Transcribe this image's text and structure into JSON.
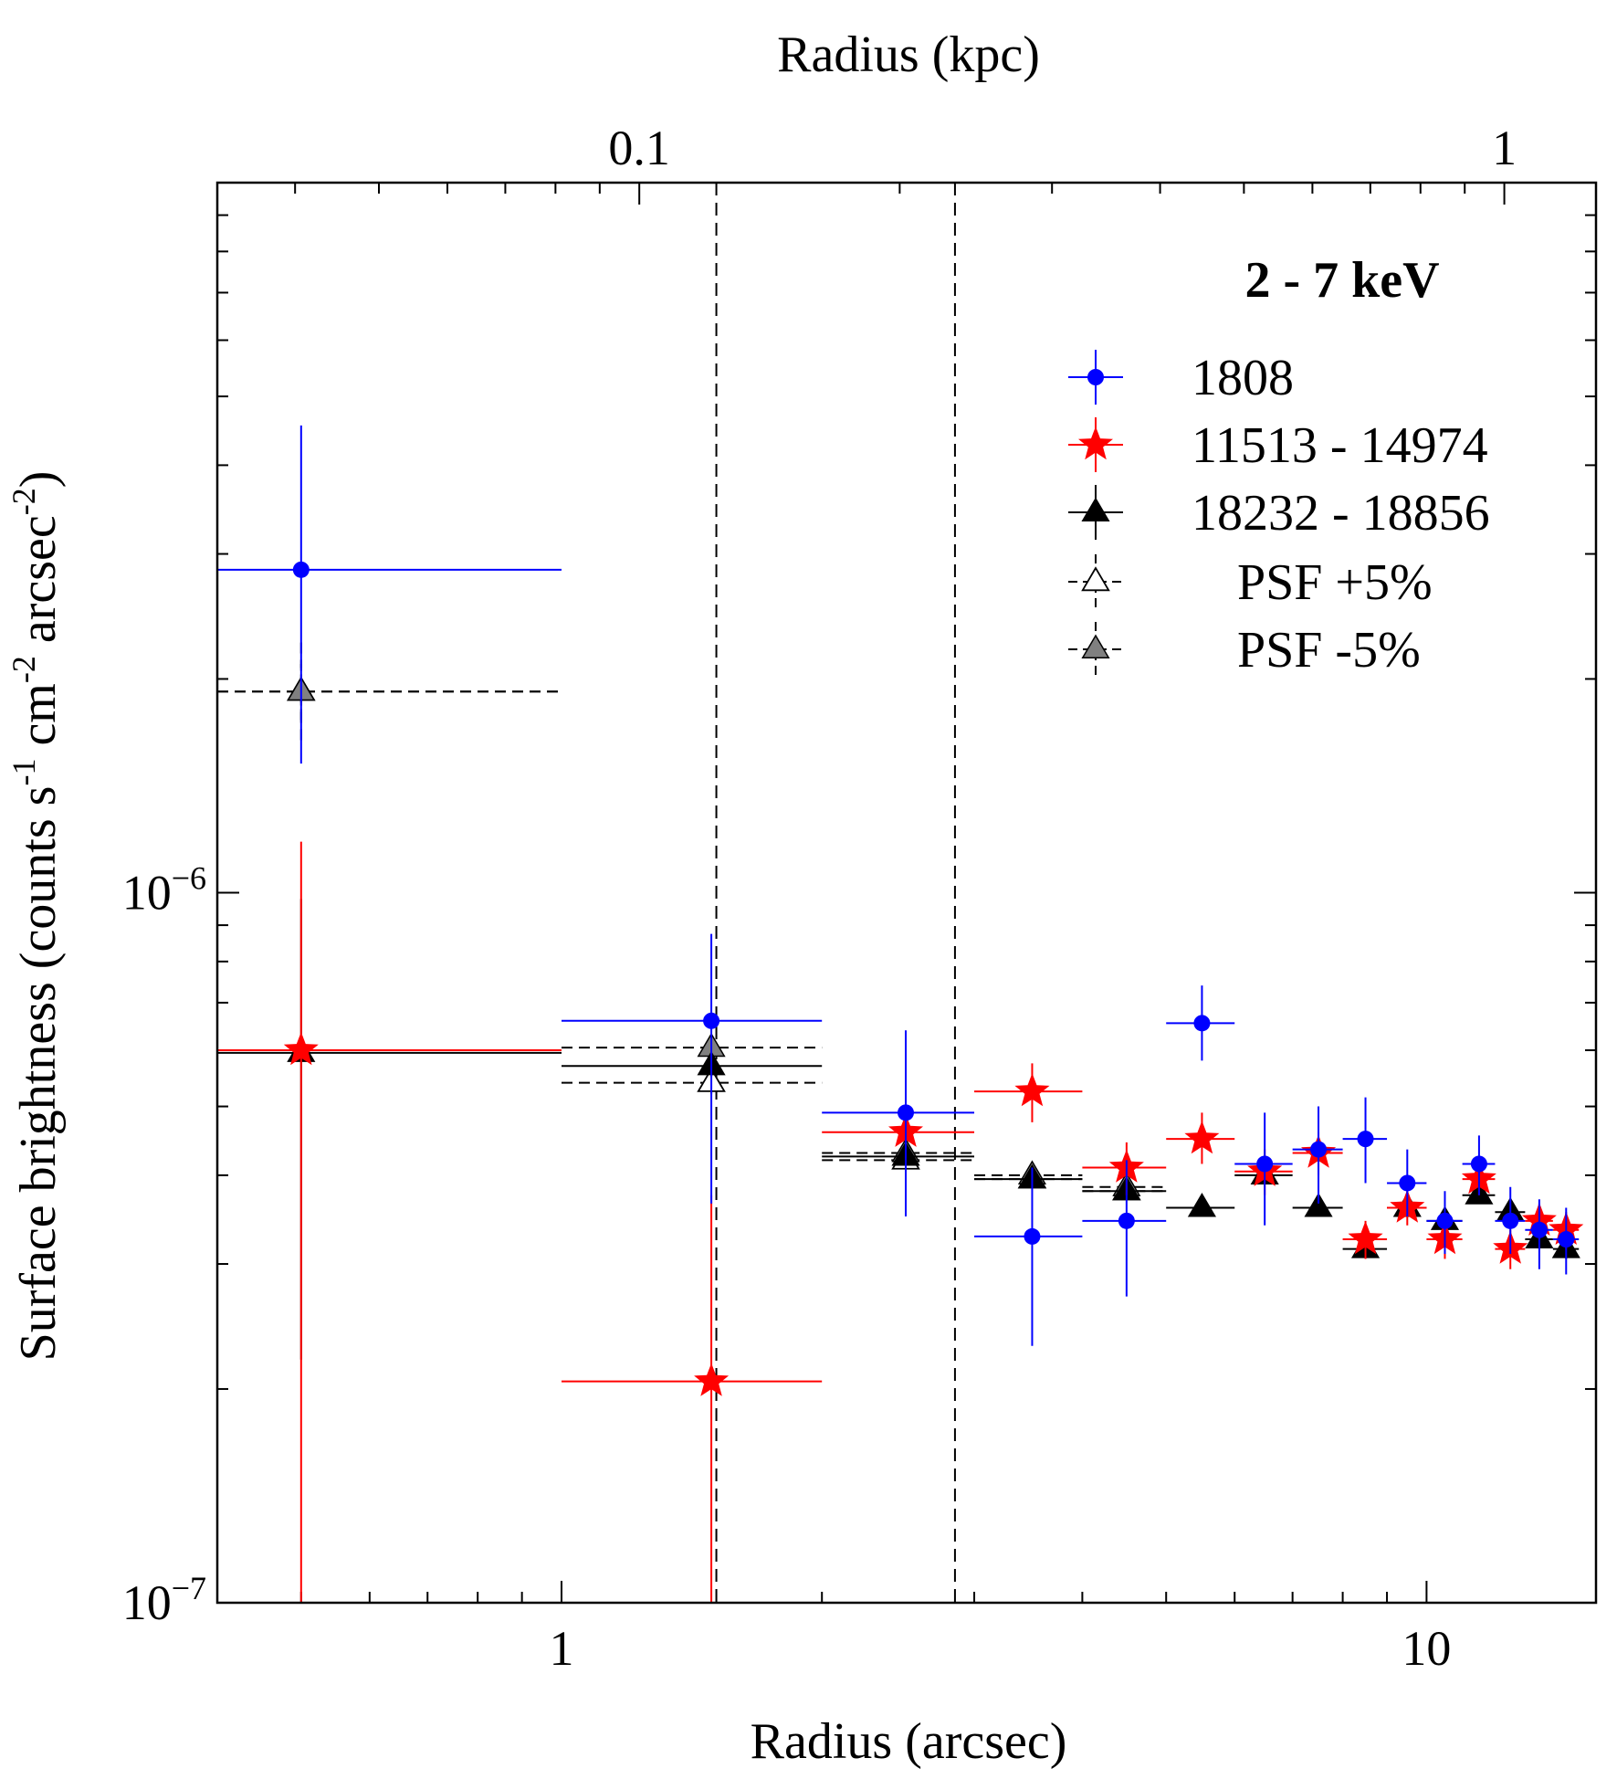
{
  "chart_data": {
    "type": "scatter",
    "xscale": "log",
    "yscale": "log",
    "xlim": [
      0.4,
      15.7
    ],
    "ylim": [
      1e-07,
      1e-05
    ],
    "xlabel": "Radius (arcsec)",
    "ylabel_main": "Surface brightness (counts s",
    "ylabel_parts": [
      "-1",
      " cm",
      "-2",
      " arcsec",
      "-2",
      ")"
    ],
    "x2label": "Radius (kpc)",
    "x_tick_labels": [
      {
        "value": 1,
        "label": "1"
      },
      {
        "value": 10,
        "label": "10"
      }
    ],
    "x2_tick_labels": [
      {
        "value": 0.1,
        "label": "0.1"
      },
      {
        "value": 1,
        "label": "1"
      }
    ],
    "x2_arcsec_per_kpc": 12.3,
    "y_tick_labels": [
      {
        "value": 1e-06,
        "base": "10",
        "exp": "−6"
      },
      {
        "value": 1e-07,
        "base": "10",
        "exp": "−7"
      }
    ],
    "vlines": [
      1.51,
      2.85
    ],
    "legend_title": "2 - 7 keV",
    "colors": {
      "s1808": "#0000ff",
      "s11513": "#ff0000",
      "s18232": "#000000",
      "psf_minus_fill": "#808080"
    },
    "series": [
      {
        "name": "1808",
        "marker": "circle",
        "color": "#0000ff",
        "points": [
          {
            "x": 0.5,
            "xlo": 0.4,
            "xhi": 1.0,
            "y": 2.85e-06,
            "ylo": 1.52e-06,
            "yhi": 4.55e-06
          },
          {
            "x": 1.49,
            "xlo": 1.0,
            "xhi": 2.0,
            "y": 6.6e-07,
            "ylo": 3.65e-07,
            "yhi": 8.75e-07
          },
          {
            "x": 2.5,
            "xlo": 2.0,
            "xhi": 3.0,
            "y": 4.9e-07,
            "ylo": 3.5e-07,
            "yhi": 6.4e-07
          },
          {
            "x": 3.5,
            "xlo": 3.0,
            "xhi": 4.0,
            "y": 3.28e-07,
            "ylo": 2.3e-07,
            "yhi": 4.1e-07
          },
          {
            "x": 4.5,
            "xlo": 4.0,
            "xhi": 5.0,
            "y": 3.45e-07,
            "ylo": 2.7e-07,
            "yhi": 4.2e-07
          },
          {
            "x": 5.5,
            "xlo": 5.0,
            "xhi": 6.0,
            "y": 6.55e-07,
            "ylo": 5.8e-07,
            "yhi": 7.4e-07
          },
          {
            "x": 6.5,
            "xlo": 6.0,
            "xhi": 7.0,
            "y": 4.15e-07,
            "ylo": 3.4e-07,
            "yhi": 4.9e-07
          },
          {
            "x": 7.5,
            "xlo": 7.0,
            "xhi": 8.0,
            "y": 4.35e-07,
            "ylo": 3.65e-07,
            "yhi": 5e-07
          },
          {
            "x": 8.5,
            "xlo": 8.0,
            "xhi": 9.0,
            "y": 4.5e-07,
            "ylo": 3.9e-07,
            "yhi": 5.15e-07
          },
          {
            "x": 9.5,
            "xlo": 9.0,
            "xhi": 10.0,
            "y": 3.9e-07,
            "ylo": 3.5e-07,
            "yhi": 4.35e-07
          },
          {
            "x": 10.5,
            "xlo": 10.0,
            "xhi": 11.0,
            "y": 3.45e-07,
            "ylo": 3.1e-07,
            "yhi": 3.8e-07
          },
          {
            "x": 11.5,
            "xlo": 11.0,
            "xhi": 12.0,
            "y": 4.15e-07,
            "ylo": 3.75e-07,
            "yhi": 4.55e-07
          },
          {
            "x": 12.5,
            "xlo": 12.0,
            "xhi": 13.0,
            "y": 3.45e-07,
            "ylo": 3.1e-07,
            "yhi": 3.85e-07
          },
          {
            "x": 13.5,
            "xlo": 13.0,
            "xhi": 14.0,
            "y": 3.35e-07,
            "ylo": 2.95e-07,
            "yhi": 3.7e-07
          },
          {
            "x": 14.5,
            "xlo": 14.0,
            "xhi": 15.0,
            "y": 3.25e-07,
            "ylo": 2.9e-07,
            "yhi": 3.6e-07
          }
        ]
      },
      {
        "name": "11513 - 14974",
        "marker": "star",
        "color": "#ff0000",
        "points": [
          {
            "x": 0.5,
            "xlo": 0.4,
            "xhi": 1.0,
            "y": 6e-07,
            "ylo": 1e-07,
            "yhi": 1.18e-06
          },
          {
            "x": 1.49,
            "xlo": 1.0,
            "xhi": 2.0,
            "y": 2.05e-07,
            "ylo": 1e-07,
            "yhi": 3.75e-07
          },
          {
            "x": 2.5,
            "xlo": 2.0,
            "xhi": 3.0,
            "y": 4.6e-07,
            "ylo": 4.2e-07,
            "yhi": 5e-07
          },
          {
            "x": 3.5,
            "xlo": 3.0,
            "xhi": 4.0,
            "y": 5.25e-07,
            "ylo": 4.75e-07,
            "yhi": 5.75e-07
          },
          {
            "x": 4.5,
            "xlo": 4.0,
            "xhi": 5.0,
            "y": 4.1e-07,
            "ylo": 3.75e-07,
            "yhi": 4.45e-07
          },
          {
            "x": 5.5,
            "xlo": 5.0,
            "xhi": 6.0,
            "y": 4.5e-07,
            "ylo": 4.15e-07,
            "yhi": 4.9e-07
          },
          {
            "x": 6.5,
            "xlo": 6.0,
            "xhi": 7.0,
            "y": 4.05e-07,
            "ylo": 3.75e-07,
            "yhi": 4.35e-07
          },
          {
            "x": 7.5,
            "xlo": 7.0,
            "xhi": 8.0,
            "y": 4.3e-07,
            "ylo": 4e-07,
            "yhi": 4.6e-07
          },
          {
            "x": 8.5,
            "xlo": 8.0,
            "xhi": 9.0,
            "y": 3.25e-07,
            "ylo": 3.05e-07,
            "yhi": 3.45e-07
          },
          {
            "x": 9.5,
            "xlo": 9.0,
            "xhi": 10.0,
            "y": 3.6e-07,
            "ylo": 3.4e-07,
            "yhi": 3.8e-07
          },
          {
            "x": 10.5,
            "xlo": 10.0,
            "xhi": 11.0,
            "y": 3.25e-07,
            "ylo": 3.05e-07,
            "yhi": 3.45e-07
          },
          {
            "x": 11.5,
            "xlo": 11.0,
            "xhi": 12.0,
            "y": 3.95e-07,
            "ylo": 3.75e-07,
            "yhi": 4.15e-07
          },
          {
            "x": 12.5,
            "xlo": 12.0,
            "xhi": 13.0,
            "y": 3.15e-07,
            "ylo": 2.95e-07,
            "yhi": 3.35e-07
          },
          {
            "x": 13.5,
            "xlo": 13.0,
            "xhi": 14.0,
            "y": 3.45e-07,
            "ylo": 3.25e-07,
            "yhi": 3.65e-07
          },
          {
            "x": 14.5,
            "xlo": 14.0,
            "xhi": 15.0,
            "y": 3.35e-07,
            "ylo": 3.15e-07,
            "yhi": 3.55e-07
          }
        ]
      },
      {
        "name": "18232 - 18856",
        "marker": "triangle",
        "color": "#000000",
        "points": [
          {
            "x": 0.5,
            "xlo": 0.4,
            "xhi": 1.0,
            "y": 5.95e-07,
            "ylo": 2.2e-07,
            "yhi": 9.8e-07
          },
          {
            "x": 1.49,
            "xlo": 1.0,
            "xhi": 2.0,
            "y": 5.7e-07,
            "ylo": 5.5e-07,
            "yhi": 5.9e-07
          },
          {
            "x": 2.5,
            "xlo": 2.0,
            "xhi": 3.0,
            "y": 4.25e-07,
            "ylo": 4.1e-07,
            "yhi": 4.4e-07
          },
          {
            "x": 3.5,
            "xlo": 3.0,
            "xhi": 4.0,
            "y": 3.95e-07,
            "ylo": 3.85e-07,
            "yhi": 4.05e-07
          },
          {
            "x": 4.5,
            "xlo": 4.0,
            "xhi": 5.0,
            "y": 3.8e-07,
            "ylo": 3.7e-07,
            "yhi": 3.9e-07
          },
          {
            "x": 5.5,
            "xlo": 5.0,
            "xhi": 6.0,
            "y": 3.6e-07,
            "ylo": 3.5e-07,
            "yhi": 3.7e-07
          },
          {
            "x": 6.5,
            "xlo": 6.0,
            "xhi": 7.0,
            "y": 4e-07,
            "ylo": 3.9e-07,
            "yhi": 4.1e-07
          },
          {
            "x": 7.5,
            "xlo": 7.0,
            "xhi": 8.0,
            "y": 3.6e-07,
            "ylo": 3.5e-07,
            "yhi": 3.7e-07
          },
          {
            "x": 8.5,
            "xlo": 8.0,
            "xhi": 9.0,
            "y": 3.15e-07,
            "ylo": 3.05e-07,
            "yhi": 3.25e-07
          },
          {
            "x": 9.5,
            "xlo": 9.0,
            "xhi": 10.0,
            "y": 3.6e-07,
            "ylo": 3.5e-07,
            "yhi": 3.7e-07
          },
          {
            "x": 10.5,
            "xlo": 10.0,
            "xhi": 11.0,
            "y": 3.45e-07,
            "ylo": 3.35e-07,
            "yhi": 3.55e-07
          },
          {
            "x": 11.5,
            "xlo": 11.0,
            "xhi": 12.0,
            "y": 3.75e-07,
            "ylo": 3.65e-07,
            "yhi": 3.85e-07
          },
          {
            "x": 12.5,
            "xlo": 12.0,
            "xhi": 13.0,
            "y": 3.55e-07,
            "ylo": 3.45e-07,
            "yhi": 3.65e-07
          },
          {
            "x": 13.5,
            "xlo": 13.0,
            "xhi": 14.0,
            "y": 3.25e-07,
            "ylo": 3.15e-07,
            "yhi": 3.35e-07
          },
          {
            "x": 14.5,
            "xlo": 14.0,
            "xhi": 15.0,
            "y": 3.15e-07,
            "ylo": 3.05e-07,
            "yhi": 3.25e-07
          }
        ]
      },
      {
        "name": "PSF +5%",
        "marker": "triangle-open",
        "color": "#000000",
        "dashed": true,
        "points": [
          {
            "x": 0.5,
            "xlo": 0.4,
            "xhi": 1.0,
            "y": 1.92e-06,
            "ylo": 1.75e-06,
            "yhi": 2.1e-06
          },
          {
            "x": 1.49,
            "xlo": 1.0,
            "xhi": 2.0,
            "y": 5.4e-07,
            "ylo": 5.2e-07,
            "yhi": 5.6e-07
          },
          {
            "x": 2.5,
            "xlo": 2.0,
            "xhi": 3.0,
            "y": 4.2e-07,
            "ylo": 4.1e-07,
            "yhi": 4.3e-07
          },
          {
            "x": 3.5,
            "xlo": 3.0,
            "xhi": 4.0,
            "y": 3.95e-07,
            "ylo": 3.9e-07,
            "yhi": 4e-07
          },
          {
            "x": 4.5,
            "xlo": 4.0,
            "xhi": 5.0,
            "y": 3.8e-07,
            "ylo": 3.75e-07,
            "yhi": 3.85e-07
          }
        ]
      },
      {
        "name": "PSF -5%",
        "marker": "triangle",
        "color": "#808080",
        "dashed": true,
        "points": [
          {
            "x": 0.5,
            "xlo": 0.4,
            "xhi": 1.0,
            "y": 1.92e-06,
            "ylo": 1.64e-06,
            "yhi": 2.25e-06
          },
          {
            "x": 1.49,
            "xlo": 1.0,
            "xhi": 2.0,
            "y": 6.05e-07,
            "ylo": 5.85e-07,
            "yhi": 6.25e-07
          },
          {
            "x": 2.5,
            "xlo": 2.0,
            "xhi": 3.0,
            "y": 4.3e-07,
            "ylo": 4.2e-07,
            "yhi": 4.4e-07
          },
          {
            "x": 3.5,
            "xlo": 3.0,
            "xhi": 4.0,
            "y": 4e-07,
            "ylo": 3.95e-07,
            "yhi": 4.05e-07
          },
          {
            "x": 4.5,
            "xlo": 4.0,
            "xhi": 5.0,
            "y": 3.85e-07,
            "ylo": 3.8e-07,
            "yhi": 3.9e-07
          }
        ]
      }
    ]
  }
}
